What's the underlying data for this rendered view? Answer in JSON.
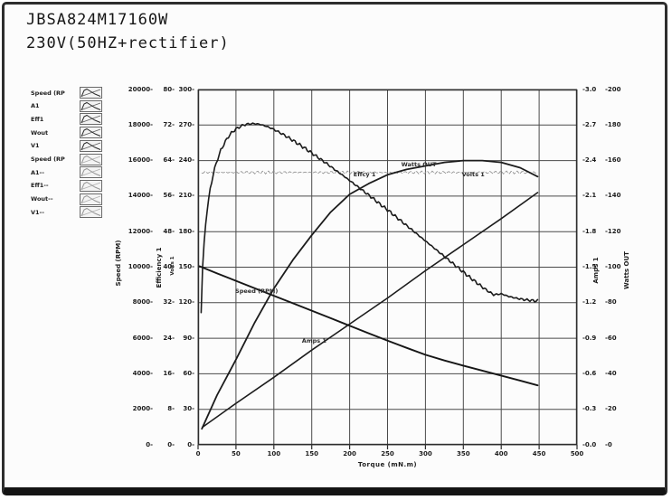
{
  "title": {
    "line1": "JBSA824M17160W",
    "line2": "230V(50HZ+rectifier)"
  },
  "legend": {
    "items": [
      {
        "label": "Speed (RP"
      },
      {
        "label": "A1"
      },
      {
        "label": "Eff1"
      },
      {
        "label": "Wout"
      },
      {
        "label": "V1"
      },
      {
        "label": "Speed (RP"
      },
      {
        "label": "A1--"
      },
      {
        "label": "Eff1--"
      },
      {
        "label": "Wout--"
      },
      {
        "label": "V1--"
      }
    ]
  },
  "chart_data": {
    "type": "line",
    "title": "JBSA824M17160W 230V(50HZ+rectifier) motor performance curves",
    "xlabel": "Torque (mN.m)",
    "xlim": [
      0,
      500
    ],
    "x_ticks": [
      "0",
      "50",
      "100",
      "150",
      "200",
      "250",
      "300",
      "350",
      "400",
      "450",
      "500"
    ],
    "grid": true,
    "legend_position": "left",
    "axes_left": [
      {
        "id": "speed",
        "title": "Speed (RPM)",
        "range": [
          0,
          20000
        ],
        "tick_suffix": "-",
        "ticks": [
          "20000",
          "18000",
          "16000",
          "14000",
          "12000",
          "10000",
          "8000",
          "6000",
          "4000",
          "2000",
          "0"
        ]
      },
      {
        "id": "efficiency",
        "title": "Efficiency 1",
        "range": [
          0,
          80
        ],
        "tick_suffix": "-",
        "ticks": [
          "80",
          "72",
          "64",
          "56",
          "48",
          "40",
          "32",
          "24",
          "16",
          "8",
          "0"
        ]
      },
      {
        "id": "volts",
        "title": "Volts 1",
        "range": [
          0,
          300
        ],
        "tick_suffix": "-",
        "ticks": [
          "300",
          "270",
          "240",
          "210",
          "180",
          "150",
          "120",
          "90",
          "60",
          "30",
          "0"
        ]
      }
    ],
    "axes_right": [
      {
        "id": "amps",
        "title": "Amps 1",
        "range": [
          0,
          3
        ],
        "tick_prefix": "-",
        "ticks": [
          "3.0",
          "2.7",
          "2.4",
          "2.1",
          "1.8",
          "1.5",
          "1.2",
          "0.9",
          "0.6",
          "0.3",
          "0.0"
        ]
      },
      {
        "id": "watts",
        "title": "Watts OUT",
        "range": [
          0,
          200
        ],
        "tick_prefix": "-",
        "ticks": [
          "200",
          "180",
          "160",
          "140",
          "120",
          "100",
          "80",
          "60",
          "40",
          "20",
          "0"
        ]
      }
    ],
    "series": [
      {
        "id": "volts",
        "name": "Volts 1",
        "axis": "volts",
        "color": "#8a8a8a",
        "noisy": true,
        "points": [
          [
            5,
            230
          ],
          [
            448,
            230
          ]
        ]
      },
      {
        "id": "amps",
        "name": "Amps 1",
        "axis": "amps",
        "color": "#1c1c1c",
        "noisy": false,
        "points": [
          [
            6,
            0.15
          ],
          [
            50,
            0.35
          ],
          [
            100,
            0.57
          ],
          [
            150,
            0.8
          ],
          [
            200,
            1.02
          ],
          [
            250,
            1.24
          ],
          [
            300,
            1.47
          ],
          [
            350,
            1.69
          ],
          [
            400,
            1.91
          ],
          [
            448,
            2.13
          ]
        ]
      },
      {
        "id": "watts",
        "name": "Watts OUT",
        "axis": "watts",
        "color": "#1c1c1c",
        "noisy": false,
        "points": [
          [
            5,
            9
          ],
          [
            25,
            28
          ],
          [
            50,
            48
          ],
          [
            75,
            69
          ],
          [
            100,
            88
          ],
          [
            125,
            104
          ],
          [
            150,
            118
          ],
          [
            175,
            131
          ],
          [
            200,
            141
          ],
          [
            225,
            147
          ],
          [
            250,
            152
          ],
          [
            275,
            155
          ],
          [
            300,
            157
          ],
          [
            325,
            159
          ],
          [
            350,
            160
          ],
          [
            375,
            160
          ],
          [
            400,
            159
          ],
          [
            425,
            156
          ],
          [
            448,
            151
          ]
        ]
      },
      {
        "id": "effcy",
        "name": "Effcy 1",
        "axis": "efficiency",
        "color": "#1c1c1c",
        "noisy": true,
        "points": [
          [
            4,
            30
          ],
          [
            6,
            40
          ],
          [
            9,
            48
          ],
          [
            12,
            53
          ],
          [
            16,
            57.5
          ],
          [
            20,
            61
          ],
          [
            25,
            64
          ],
          [
            30,
            66.3
          ],
          [
            35,
            68
          ],
          [
            40,
            69.4
          ],
          [
            45,
            70.4
          ],
          [
            50,
            71.1
          ],
          [
            55,
            71.6
          ],
          [
            60,
            72
          ],
          [
            65,
            72.2
          ],
          [
            70,
            72.3
          ],
          [
            75,
            72.3
          ],
          [
            80,
            72.2
          ],
          [
            85,
            72
          ],
          [
            90,
            71.7
          ],
          [
            95,
            71.4
          ],
          [
            100,
            71
          ],
          [
            110,
            70.1
          ],
          [
            120,
            69.1
          ],
          [
            130,
            68
          ],
          [
            140,
            66.9
          ],
          [
            150,
            65.7
          ],
          [
            160,
            64.5
          ],
          [
            170,
            63.3
          ],
          [
            180,
            62
          ],
          [
            190,
            60.8
          ],
          [
            200,
            59.5
          ],
          [
            210,
            58.2
          ],
          [
            220,
            56.9
          ],
          [
            230,
            55.6
          ],
          [
            240,
            54.2
          ],
          [
            250,
            52.9
          ],
          [
            260,
            51.5
          ],
          [
            270,
            50.1
          ],
          [
            280,
            48.7
          ],
          [
            290,
            47.3
          ],
          [
            300,
            45.9
          ],
          [
            310,
            44.5
          ],
          [
            320,
            43.1
          ],
          [
            330,
            41.7
          ],
          [
            340,
            40.3
          ],
          [
            350,
            38.9
          ],
          [
            360,
            37.5
          ],
          [
            370,
            36.2
          ],
          [
            380,
            34.9
          ],
          [
            390,
            33.8
          ],
          [
            400,
            34
          ],
          [
            410,
            33.4
          ],
          [
            420,
            33
          ],
          [
            430,
            32.7
          ],
          [
            440,
            32.5
          ],
          [
            448,
            32.4
          ]
        ]
      },
      {
        "id": "speed",
        "name": "Speed (RPM)",
        "axis": "speed",
        "color": "#161616",
        "noisy": false,
        "points": [
          [
            2,
            10050
          ],
          [
            25,
            9650
          ],
          [
            50,
            9230
          ],
          [
            75,
            8810
          ],
          [
            100,
            8390
          ],
          [
            125,
            7970
          ],
          [
            150,
            7550
          ],
          [
            175,
            7130
          ],
          [
            200,
            6700
          ],
          [
            225,
            6280
          ],
          [
            250,
            5870
          ],
          [
            275,
            5460
          ],
          [
            300,
            5070
          ],
          [
            325,
            4750
          ],
          [
            350,
            4460
          ],
          [
            375,
            4180
          ],
          [
            400,
            3900
          ],
          [
            425,
            3620
          ],
          [
            448,
            3350
          ]
        ]
      }
    ],
    "annotations": [
      {
        "text": "Speed (RPM)",
        "x": 49,
        "y": 130
      },
      {
        "text": "Amps 1",
        "x": 137,
        "y": 88
      },
      {
        "text": "Effcy 1",
        "x": 205,
        "y": 228
      },
      {
        "text": "Watts OUT",
        "x": 268,
        "y": 237
      },
      {
        "text": "Volts 1",
        "x": 348,
        "y": 228
      }
    ],
    "annotation_y_scale": "volts (0-300 left axis units)"
  },
  "colors": {
    "frame_border": "#2e2e2e",
    "bottom_bar": "#141414",
    "grid": "#4a4a4a",
    "curve": "#1c1c1c",
    "volts_line": "#8a8a8a",
    "text": "#1d1d1d"
  }
}
